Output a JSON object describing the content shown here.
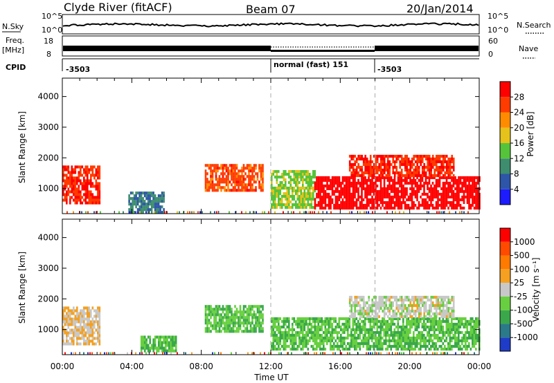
{
  "header": {
    "station": "Clyde River (fitACF)",
    "beam": "Beam 07",
    "date": "20/Jan/2014"
  },
  "strips": {
    "nsky_label": "N.Sky",
    "nsky_ticks": [
      "10^5",
      "10^0"
    ],
    "nsearch_label": "N.Search",
    "freq_label_1": "Freq.",
    "freq_label_2": "[MHz]",
    "freq_ticks": [
      "18",
      "8"
    ],
    "nave_label": "Nave",
    "nave_ticks": [
      "60",
      "0"
    ],
    "cpid_label": "CPID",
    "cpid_segments": [
      {
        "label": "-3503",
        "start_hour": 0
      },
      {
        "label": "normal (fast) 151",
        "start_hour": 12
      },
      {
        "label": "-3503",
        "start_hour": 18
      }
    ]
  },
  "axes": {
    "ylabel": "Slant Range [km]",
    "xlabel": "Time UT",
    "xticks": [
      "00:00",
      "04:00",
      "08:00",
      "12:00",
      "16:00",
      "20:00",
      "00:00"
    ],
    "yticks": [
      "1000",
      "2000",
      "3000",
      "4000"
    ]
  },
  "colorbars": {
    "power": {
      "title": "Power [dB]",
      "labels": [
        "4",
        "8",
        "12",
        "16",
        "20",
        "24",
        "28"
      ],
      "colors": [
        "#1c1cff",
        "#2d55a8",
        "#3d8d6e",
        "#56c43a",
        "#e6c21a",
        "#ff8c00",
        "#ff3b00",
        "#ff0000"
      ]
    },
    "velocity": {
      "title": "Velocity [m s⁻¹]",
      "labels": [
        "1000",
        "500",
        "100",
        "25",
        "-25",
        "-100",
        "-500",
        "-1000"
      ],
      "colors": [
        "#1e3cc8",
        "#2a7a8a",
        "#3aa84a",
        "#68d040",
        "#c8c8c8",
        "#f5a020",
        "#ff7a00",
        "#ff4a00",
        "#ff0000"
      ]
    }
  },
  "chart_data": [
    {
      "type": "heatmap",
      "title": "Power [dB]",
      "xlabel": "Time UT",
      "ylabel": "Slant Range [km]",
      "xlim": [
        0,
        24
      ],
      "ylim": [
        180,
        4600
      ],
      "colorbar_range": [
        0,
        30
      ],
      "patches": [
        {
          "t": [
            0.0,
            2.1
          ],
          "r": [
            550,
            1750
          ],
          "value": 26
        },
        {
          "t": [
            3.8,
            5.8
          ],
          "r": [
            250,
            900
          ],
          "value": 8
        },
        {
          "t": [
            8.2,
            11.5
          ],
          "r": [
            900,
            1800
          ],
          "value": 24
        },
        {
          "t": [
            12.0,
            14.5
          ],
          "r": [
            400,
            1600
          ],
          "value": 14
        },
        {
          "t": [
            14.5,
            24.0
          ],
          "r": [
            400,
            1400
          ],
          "value": 29
        },
        {
          "t": [
            16.5,
            22.5
          ],
          "r": [
            1400,
            2100
          ],
          "value": 26
        }
      ]
    },
    {
      "type": "heatmap",
      "title": "Velocity [m s⁻¹]",
      "xlabel": "Time UT",
      "ylabel": "Slant Range [km]",
      "xlim": [
        0,
        24
      ],
      "ylim": [
        180,
        4600
      ],
      "colorbar_range": [
        -1000,
        1000
      ],
      "patches": [
        {
          "t": [
            0.0,
            2.1
          ],
          "r": [
            550,
            1750
          ],
          "value": 100
        },
        {
          "t": [
            4.5,
            6.5
          ],
          "r": [
            300,
            800
          ],
          "value": -300
        },
        {
          "t": [
            8.2,
            11.5
          ],
          "r": [
            900,
            1800
          ],
          "value": -300
        },
        {
          "t": [
            12.0,
            24.0
          ],
          "r": [
            400,
            1400
          ],
          "value": -300
        },
        {
          "t": [
            16.5,
            22.5
          ],
          "r": [
            1400,
            2100
          ],
          "value": -20
        }
      ]
    }
  ]
}
